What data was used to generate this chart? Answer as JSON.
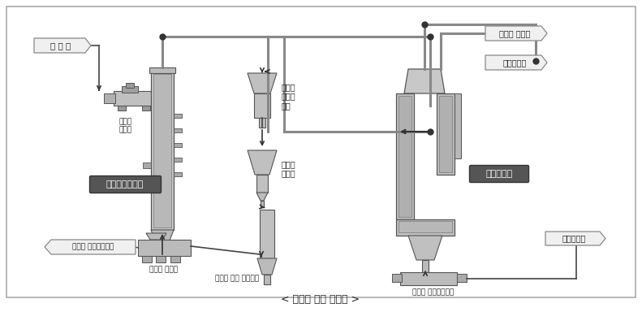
{
  "bg_color": "#ffffff",
  "labels": {
    "waste": "폐 기 물",
    "feeder": "폐기물\n공급기",
    "fluidized_bed": "유동상열분해로",
    "sand_stabilizer": "염기도\n안정화\n탱크",
    "sand_storage": "유동사\n저장조",
    "sand_separator": "유동사 분리기",
    "sand_conveyor": "유동사 순환 컨베이어",
    "unburned_conveyor": "불연물 이송컨베이어",
    "swirl_furnace": "선회용융로",
    "boiler": "폐열보일러",
    "unburned_dust": "불연물 분쇄물",
    "slag_conveyor": "슬래그 급랭컨베이어",
    "slag_out": "슬래그배출",
    "caption": "< 페기물 처리 계통도 >"
  }
}
